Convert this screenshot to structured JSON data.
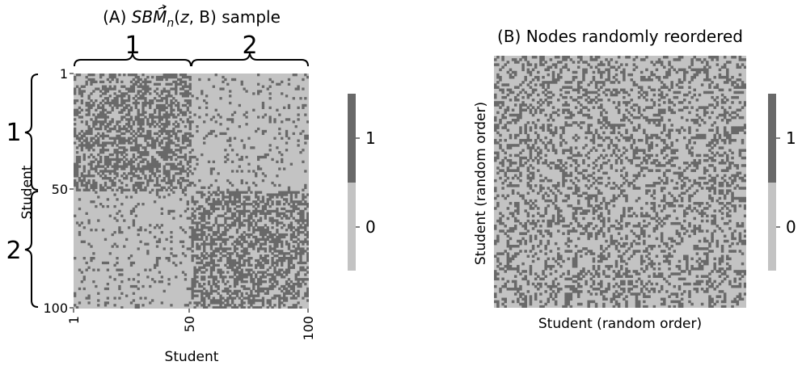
{
  "chart_data": [
    {
      "type": "heatmap",
      "title_prefix": "(A) ",
      "title_math": "SBM",
      "title_subscript": "n",
      "title_args_open": "(",
      "title_vec": "z",
      "title_args_rest": ", B)",
      "title_suffix": " sample",
      "xlabel": "Student",
      "ylabel": "Student",
      "x_ticks": [
        "1",
        "50",
        "100"
      ],
      "y_ticks": [
        "1",
        "50",
        "100"
      ],
      "n": 100,
      "blocks": [
        {
          "label": "1",
          "start": 1,
          "end": 50
        },
        {
          "label": "2",
          "start": 51,
          "end": 100
        }
      ],
      "block_probabilities": [
        [
          0.5,
          0.1
        ],
        [
          0.1,
          0.5
        ]
      ],
      "colorbar": {
        "ticks": [
          "0",
          "1"
        ],
        "values": [
          0,
          1
        ]
      },
      "grid": false,
      "seed": 7
    },
    {
      "type": "heatmap",
      "title": "(B) Nodes randomly reordered",
      "xlabel": "Student (random order)",
      "ylabel": "Student (random order)",
      "n": 100,
      "source": "same sample, nodes permuted",
      "colorbar": {
        "ticks": [
          "0",
          "1"
        ],
        "values": [
          0,
          1
        ]
      },
      "grid": false,
      "seed": 11
    }
  ],
  "colors": {
    "zero": "#c3c3c3",
    "one": "#696969",
    "text": "#000000"
  }
}
